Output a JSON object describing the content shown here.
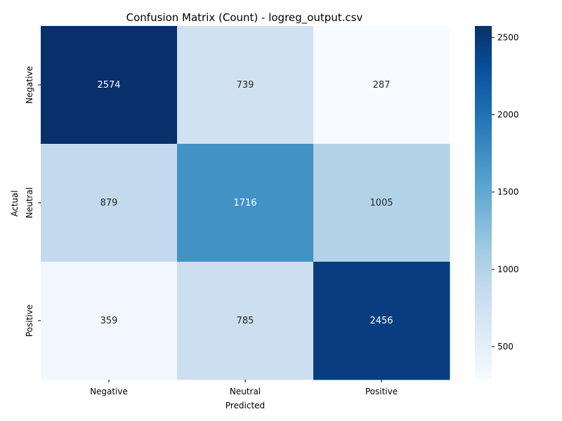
{
  "chart_data": {
    "type": "heatmap",
    "title": "Confusion Matrix (Count) - logreg_output.csv",
    "xlabel": "Predicted",
    "ylabel": "Actual",
    "x_categories": [
      "Negative",
      "Neutral",
      "Positive"
    ],
    "y_categories": [
      "Negative",
      "Neutral",
      "Positive"
    ],
    "values": [
      [
        2574,
        739,
        287
      ],
      [
        879,
        1716,
        1005
      ],
      [
        359,
        785,
        2456
      ]
    ],
    "colormap": "Blues",
    "color_range": [
      287,
      2574
    ],
    "colorbar_ticks": [
      "500",
      "1000",
      "1500",
      "2000",
      "2500"
    ],
    "colorbar_tick_values": [
      500,
      1000,
      1500,
      2000,
      2500
    ],
    "grid": false
  }
}
